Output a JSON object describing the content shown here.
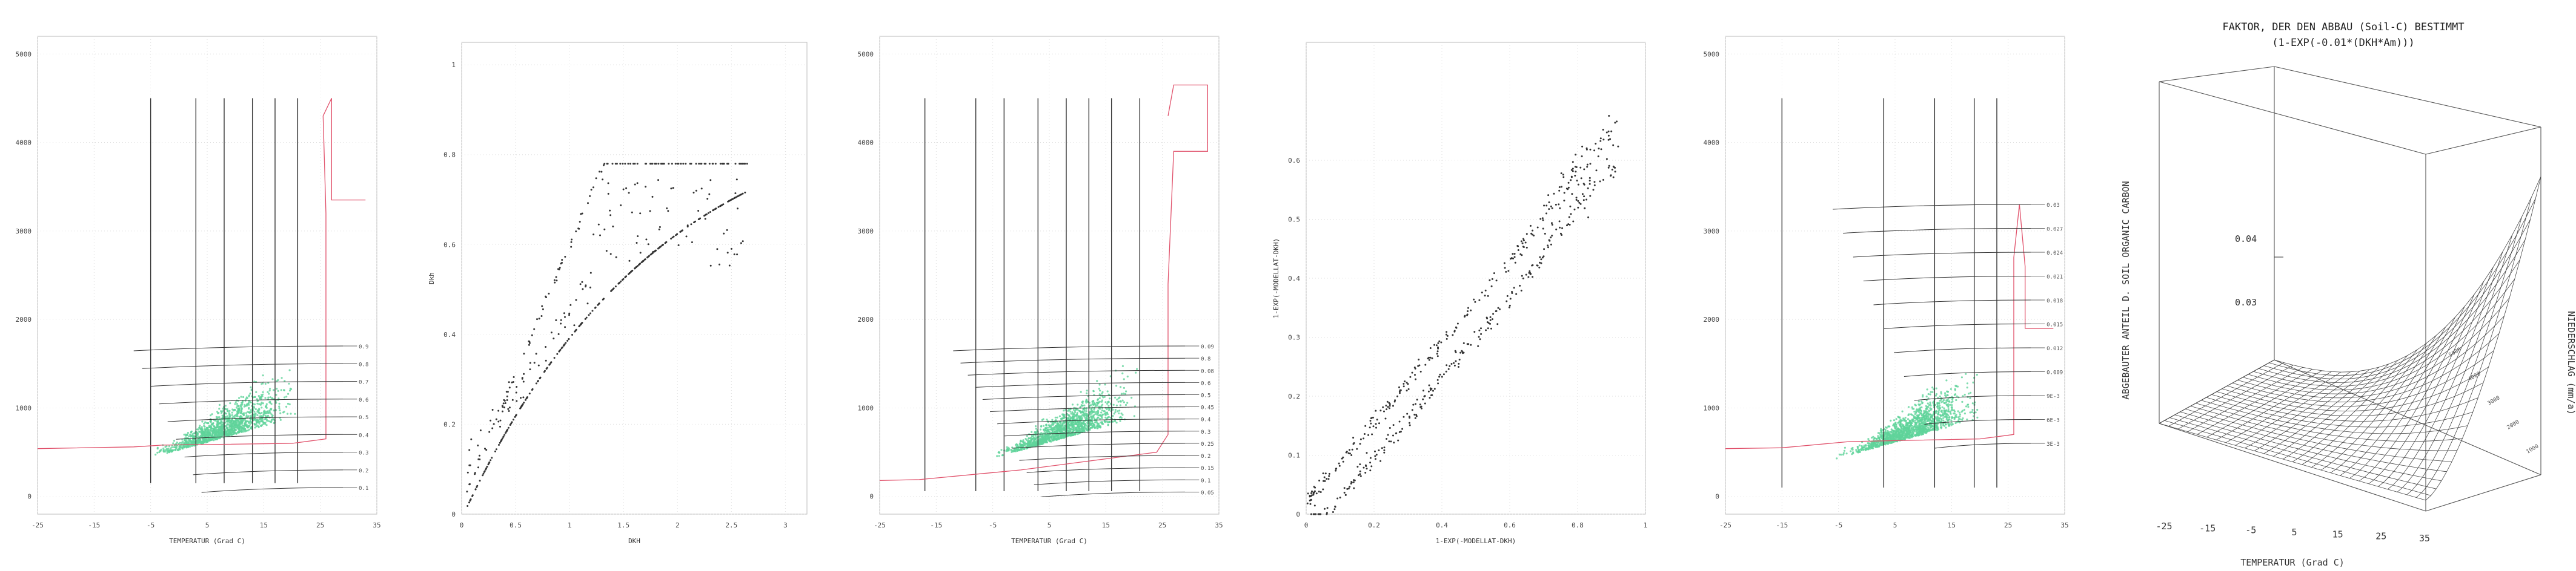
{
  "colors": {
    "green": "#5fd39a",
    "dark": "#333333",
    "red": "#e0506a",
    "grid": "#dddddd"
  },
  "chart_data": [
    {
      "id": "p1",
      "type": "scatter",
      "xlabel": "TEMPERATUR (Grad C)",
      "ylabel": "",
      "xlim": [
        -25,
        35
      ],
      "ylim": [
        -200,
        5200
      ],
      "xticks": [
        "-25",
        "-15",
        "-5",
        "5",
        "15",
        "25",
        "35"
      ],
      "yticks": [
        "0",
        "1000",
        "2000",
        "3000",
        "4000",
        "5000"
      ],
      "contour_labels": [
        "0.9",
        "0.8",
        "0.7",
        "0.6",
        "0.5",
        "0.4",
        "0.3",
        "0.2",
        "0.1"
      ],
      "series": [
        {
          "values": "green scatter points (Temperatur vs Niederschlag)"
        }
      ]
    },
    {
      "id": "p2",
      "type": "scatter",
      "xlabel": "DKH",
      "ylabel": "Dkh",
      "xlim": [
        0,
        3.2
      ],
      "ylim": [
        0,
        1.05
      ],
      "xticks": [
        "0",
        "0.5",
        "1",
        "1.5",
        "2",
        "2.5",
        "3"
      ],
      "yticks": [
        "0",
        "0.2",
        "0.4",
        "0.6",
        "0.8",
        "1"
      ],
      "series": [
        {
          "values": "dark scatter points"
        }
      ]
    },
    {
      "id": "p3",
      "type": "scatter",
      "xlabel": "TEMPERATUR (Grad C)",
      "ylabel": "",
      "xlim": [
        -25,
        35
      ],
      "ylim": [
        -200,
        5200
      ],
      "xticks": [
        "-25",
        "-15",
        "-5",
        "5",
        "15",
        "25",
        "35"
      ],
      "yticks": [
        "0",
        "1000",
        "2000",
        "3000",
        "4000",
        "5000"
      ],
      "contour_labels": [
        "0.09",
        "0.8",
        "0.08",
        "0.6",
        "0.5",
        "0.45",
        "0.4",
        "0.3",
        "0.25",
        "0.2",
        "0.15",
        "0.1",
        "0.05"
      ]
    },
    {
      "id": "p4",
      "type": "scatter",
      "xlabel": "1-EXP(-MODELLAT-DKH)",
      "ylabel": "1-EXP(-MODELLAT-DKH)",
      "xlim": [
        0,
        1.0
      ],
      "ylim": [
        0,
        0.8
      ],
      "xticks": [
        "0",
        "0.2",
        "0.4",
        "0.6",
        "0.8",
        "1"
      ],
      "yticks": [
        "0",
        "0.1",
        "0.2",
        "0.3",
        "0.4",
        "0.5",
        "0.6"
      ]
    },
    {
      "id": "p5",
      "type": "scatter",
      "xlabel": "",
      "ylabel": "",
      "xlim": [
        -25,
        35
      ],
      "ylim": [
        -200,
        5200
      ],
      "xticks": [
        "-25",
        "-15",
        "-5",
        "5",
        "15",
        "25",
        "35"
      ],
      "yticks": [
        "0",
        "1000",
        "2000",
        "3000",
        "4000",
        "5000"
      ],
      "contour_labels": [
        "0.03",
        "0.027",
        "0.024",
        "0.021",
        "0.018",
        "0.015",
        "0.012",
        "0.009",
        "9E-3",
        "6E-3",
        "3E-3"
      ]
    },
    {
      "id": "p6",
      "type": "surface",
      "title": "FAKTOR, DER DEN ABBAU (Soil-C) BESTIMMT",
      "subtitle": "(1-EXP(-0.01*(DKH*Am)))",
      "zlabel": "ABGEBAUTER ANTEIL D. SOIL ORGANIC CARBON",
      "xlabel": "TEMPERATUR (Grad C)",
      "ylabel": "NIEDERSCHLAG (mm/a)",
      "xticks": [
        "-25",
        "-15",
        "-5",
        "5",
        "15",
        "25",
        "35"
      ],
      "yticks": [
        "5000",
        "4000",
        "3000",
        "2000",
        "1000"
      ],
      "zticks": [
        "0.04",
        "0.03"
      ]
    }
  ]
}
